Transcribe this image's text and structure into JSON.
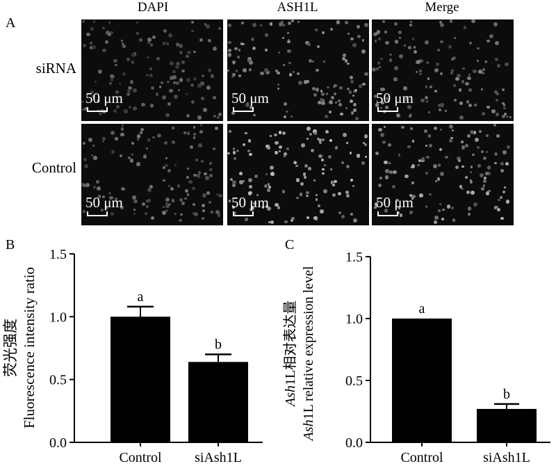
{
  "panel_a": {
    "letter": "A",
    "columns": [
      "DAPI",
      "ASH1L",
      "Merge"
    ],
    "rows": [
      "siRNA",
      "Control"
    ],
    "scale_bar_label": "50 μm"
  },
  "panel_b": {
    "letter": "B"
  },
  "panel_c": {
    "letter": "C"
  },
  "chart_data": [
    {
      "type": "bar",
      "categories": [
        "Control",
        "siAsh1L"
      ],
      "values": [
        1.0,
        0.64
      ],
      "errors": [
        0.08,
        0.06
      ],
      "significance": [
        "a",
        "b"
      ],
      "title": "",
      "xlabel": "",
      "ylabel": "荧光强度",
      "ylabel2": "Fluorescence intensity ratio",
      "ylim": [
        0,
        1.5
      ],
      "yticks": [
        "0.0",
        "0.5",
        "1.0",
        "1.5"
      ],
      "grid": false,
      "bar_color": "#000000"
    },
    {
      "type": "bar",
      "categories": [
        "Control",
        "siAsh1L"
      ],
      "values": [
        1.0,
        0.27
      ],
      "errors": [
        0.0,
        0.04
      ],
      "significance": [
        "a",
        "b"
      ],
      "title": "",
      "xlabel": "",
      "ylabel_italic": "Ash",
      "ylabel_rest": "1L相对表达量",
      "ylabel2_italic": "Ash",
      "ylabel2_rest": "1L relative expression level",
      "ylim": [
        0,
        1.5
      ],
      "yticks": [
        "0.0",
        "0.5",
        "1.0",
        "1.5"
      ],
      "grid": false,
      "bar_color": "#000000"
    }
  ]
}
